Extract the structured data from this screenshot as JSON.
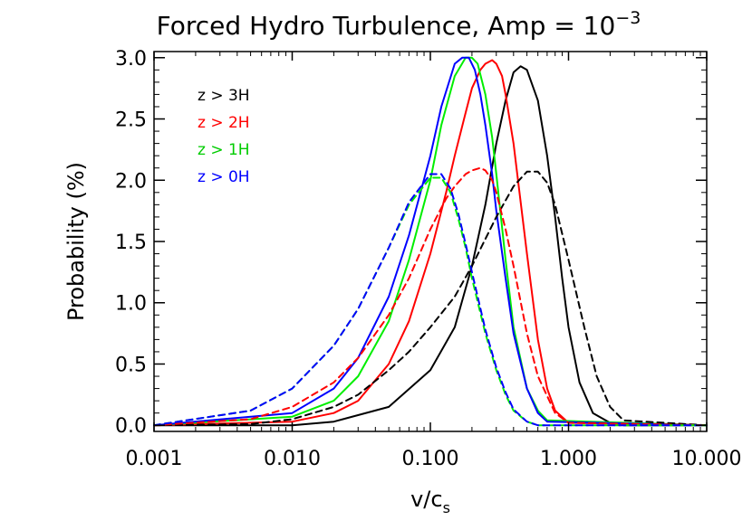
{
  "chart_data": {
    "type": "line",
    "title": {
      "prefix": "Forced Hydro Turbulence, Amp  =  10",
      "exponent": "−3"
    },
    "xlabel": {
      "main": "v/c",
      "subscript": "s"
    },
    "ylabel": "Probability (%)",
    "xscale": "log",
    "xlim": [
      0.001,
      10
    ],
    "ylim": [
      -0.05,
      3.05
    ],
    "x_ticks": [
      0.001,
      0.01,
      0.1,
      1,
      10
    ],
    "x_tick_labels": [
      "0.001",
      "0.010",
      "0.100",
      "1.000",
      "10.000"
    ],
    "y_ticks": [
      0.0,
      0.5,
      1.0,
      1.5,
      2.0,
      2.5,
      3.0
    ],
    "y_tick_labels": [
      "0.0",
      "0.5",
      "1.0",
      "1.5",
      "2.0",
      "2.5",
      "3.0"
    ],
    "grid": false,
    "legend_position": "top-left",
    "series": [
      {
        "name": "z > 3H",
        "color": "#000000",
        "dash": "solid",
        "x": [
          0.001,
          0.01,
          0.02,
          0.05,
          0.1,
          0.15,
          0.2,
          0.25,
          0.3,
          0.35,
          0.4,
          0.45,
          0.5,
          0.6,
          0.7,
          0.8,
          0.9,
          1.0,
          1.2,
          1.5,
          2.0,
          2.5,
          10.0
        ],
        "y": [
          0.0,
          0.0,
          0.03,
          0.15,
          0.45,
          0.8,
          1.3,
          1.8,
          2.3,
          2.65,
          2.88,
          2.93,
          2.9,
          2.65,
          2.2,
          1.7,
          1.2,
          0.8,
          0.35,
          0.1,
          0.02,
          0.0,
          0.0
        ]
      },
      {
        "name": "z > 2H",
        "color": "#ff0000",
        "dash": "solid",
        "x": [
          0.001,
          0.01,
          0.02,
          0.03,
          0.05,
          0.07,
          0.1,
          0.13,
          0.15,
          0.18,
          0.2,
          0.23,
          0.25,
          0.28,
          0.3,
          0.33,
          0.35,
          0.4,
          0.5,
          0.6,
          0.7,
          0.8,
          1.0,
          10.0
        ],
        "y": [
          0.0,
          0.03,
          0.1,
          0.2,
          0.5,
          0.85,
          1.4,
          1.9,
          2.2,
          2.55,
          2.75,
          2.9,
          2.95,
          2.98,
          2.95,
          2.85,
          2.7,
          2.3,
          1.4,
          0.7,
          0.3,
          0.12,
          0.02,
          0.0
        ]
      },
      {
        "name": "z > 1H",
        "color": "#00ee00",
        "dash": "solid",
        "x": [
          0.001,
          0.01,
          0.02,
          0.03,
          0.05,
          0.07,
          0.1,
          0.12,
          0.15,
          0.18,
          0.2,
          0.22,
          0.25,
          0.28,
          0.3,
          0.35,
          0.4,
          0.5,
          0.6,
          0.7,
          10.0
        ],
        "y": [
          0.0,
          0.07,
          0.2,
          0.4,
          0.85,
          1.35,
          2.0,
          2.45,
          2.85,
          3.0,
          3.0,
          2.95,
          2.7,
          2.35,
          2.05,
          1.35,
          0.8,
          0.3,
          0.12,
          0.04,
          0.0
        ]
      },
      {
        "name": "z > 0H",
        "color": "#0000ff",
        "dash": "solid",
        "x": [
          0.001,
          0.01,
          0.02,
          0.03,
          0.05,
          0.07,
          0.1,
          0.12,
          0.15,
          0.17,
          0.19,
          0.21,
          0.23,
          0.25,
          0.28,
          0.3,
          0.35,
          0.4,
          0.5,
          0.6,
          0.7,
          10.0
        ],
        "y": [
          0.0,
          0.1,
          0.3,
          0.55,
          1.05,
          1.55,
          2.2,
          2.6,
          2.95,
          3.0,
          3.0,
          2.9,
          2.7,
          2.45,
          2.05,
          1.75,
          1.2,
          0.75,
          0.3,
          0.1,
          0.03,
          0.0
        ]
      },
      {
        "name": "z > 3H (dashed)",
        "color": "#000000",
        "dash": "dashed",
        "x": [
          0.001,
          0.005,
          0.01,
          0.02,
          0.03,
          0.05,
          0.07,
          0.1,
          0.15,
          0.2,
          0.3,
          0.4,
          0.5,
          0.6,
          0.7,
          0.8,
          1.0,
          1.3,
          1.6,
          2.0,
          2.5,
          10.0
        ],
        "y": [
          0.0,
          0.01,
          0.05,
          0.15,
          0.25,
          0.45,
          0.6,
          0.8,
          1.05,
          1.3,
          1.7,
          1.95,
          2.07,
          2.07,
          1.98,
          1.8,
          1.35,
          0.8,
          0.4,
          0.15,
          0.04,
          0.0
        ]
      },
      {
        "name": "z > 2H (dashed)",
        "color": "#ff0000",
        "dash": "dashed",
        "x": [
          0.001,
          0.005,
          0.01,
          0.02,
          0.03,
          0.05,
          0.07,
          0.1,
          0.13,
          0.15,
          0.18,
          0.2,
          0.23,
          0.25,
          0.28,
          0.3,
          0.35,
          0.4,
          0.5,
          0.6,
          0.8,
          1.0,
          10.0
        ],
        "y": [
          0.0,
          0.05,
          0.15,
          0.35,
          0.55,
          0.9,
          1.2,
          1.6,
          1.85,
          1.95,
          2.05,
          2.08,
          2.1,
          2.08,
          2.0,
          1.9,
          1.6,
          1.3,
          0.75,
          0.4,
          0.1,
          0.02,
          0.0
        ]
      },
      {
        "name": "z > 1H (dashed)",
        "color": "#00ee00",
        "dash": "dashed",
        "x": [
          0.001,
          0.005,
          0.01,
          0.02,
          0.03,
          0.05,
          0.07,
          0.1,
          0.12,
          0.14,
          0.16,
          0.18,
          0.2,
          0.25,
          0.3,
          0.35,
          0.4,
          0.5,
          0.6,
          10.0
        ],
        "y": [
          0.0,
          0.12,
          0.3,
          0.65,
          0.95,
          1.45,
          1.8,
          2.02,
          2.02,
          1.9,
          1.68,
          1.45,
          1.2,
          0.75,
          0.45,
          0.25,
          0.12,
          0.03,
          0.0,
          0.0
        ]
      },
      {
        "name": "z > 0H (dashed)",
        "color": "#0000ff",
        "dash": "dashed",
        "x": [
          0.001,
          0.005,
          0.01,
          0.02,
          0.03,
          0.05,
          0.07,
          0.1,
          0.12,
          0.14,
          0.16,
          0.18,
          0.2,
          0.25,
          0.3,
          0.35,
          0.4,
          0.5,
          0.6,
          10.0
        ],
        "y": [
          0.0,
          0.12,
          0.3,
          0.65,
          0.95,
          1.45,
          1.82,
          2.05,
          2.05,
          1.93,
          1.72,
          1.48,
          1.25,
          0.78,
          0.47,
          0.27,
          0.13,
          0.03,
          0.0,
          0.0
        ]
      }
    ],
    "legend": [
      {
        "label": "z > 3H",
        "color": "#000000"
      },
      {
        "label": "z > 2H",
        "color": "#ff0000"
      },
      {
        "label": "z > 1H",
        "color": "#00cc00"
      },
      {
        "label": "z > 0H",
        "color": "#0000ff"
      }
    ]
  }
}
